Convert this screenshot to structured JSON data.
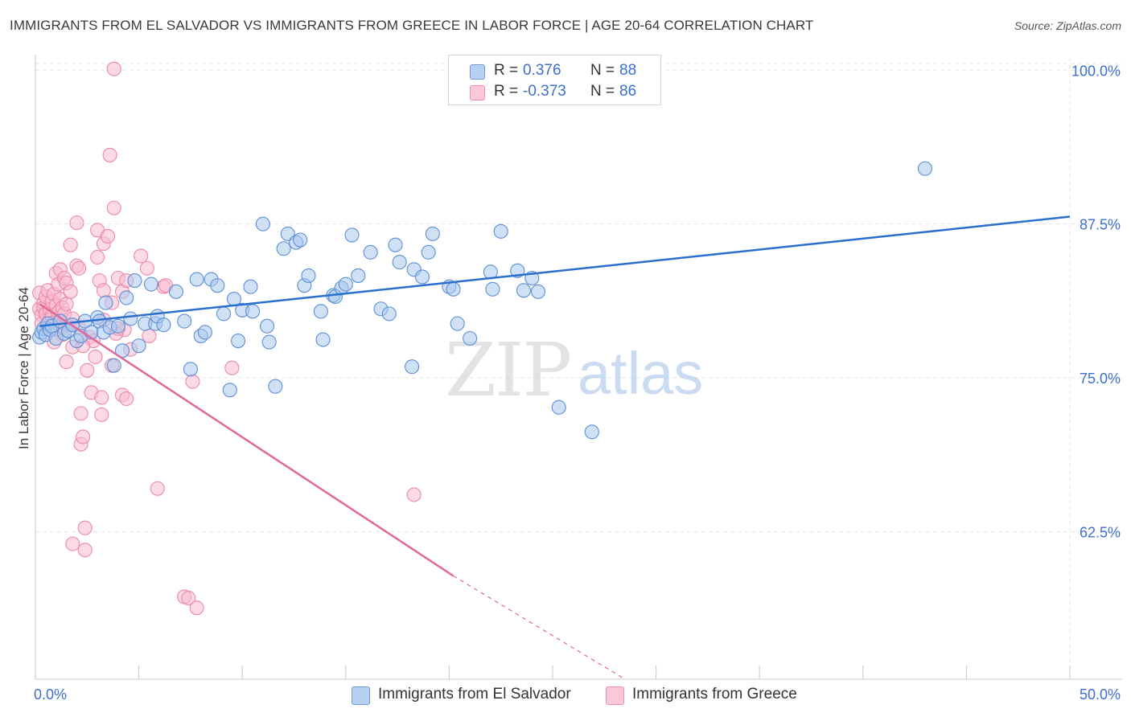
{
  "title": "IMMIGRANTS FROM EL SALVADOR VS IMMIGRANTS FROM GREECE IN LABOR FORCE | AGE 20-64 CORRELATION CHART",
  "source": "Source: ZipAtlas.com",
  "watermark": {
    "zip": "ZIP",
    "atlas": "atlas"
  },
  "legend_top": {
    "rows": [
      {
        "r_label": "R =",
        "r_value": "0.376",
        "n_label": "N =",
        "n_value": "88",
        "color": "#6b9bd9"
      },
      {
        "r_label": "R =",
        "r_value": "-0.373",
        "n_label": "N =",
        "n_value": "86",
        "color": "#f08fae"
      }
    ]
  },
  "colors": {
    "blue_fill": "#aac8ef",
    "blue_stroke": "#5c8fd6",
    "blue_line": "#2a6fce",
    "pink_fill": "#f7bcd0",
    "pink_stroke": "#ec88a8",
    "pink_line": "#e0689a",
    "axis_label": "#3d6fd1",
    "grid": "#e5e5e5"
  },
  "chart_data": {
    "type": "scatter",
    "title": "IMMIGRANTS FROM EL SALVADOR VS IMMIGRANTS FROM GREECE IN LABOR FORCE | AGE 20-64 CORRELATION CHART",
    "xlabel": "",
    "ylabel": "In Labor Force | Age 20-64",
    "xlim": [
      0,
      50
    ],
    "ylim": [
      50.5,
      101
    ],
    "x_tick_labels": [
      "0.0%",
      "50.0%"
    ],
    "y_ticks": [
      62.5,
      75.0,
      87.5,
      100.0
    ],
    "y_tick_labels": [
      "62.5%",
      "75.0%",
      "87.5%",
      "100.0%"
    ],
    "grid": true,
    "legend_placement": "bottom-center",
    "series": [
      {
        "name": "Immigrants from El Salvador",
        "r": 0.376,
        "n": 88,
        "trend": {
          "x": [
            0.2,
            50
          ],
          "y": [
            79.2,
            88.1
          ]
        },
        "points": [
          [
            0.2,
            78.3
          ],
          [
            0.3,
            78.7
          ],
          [
            0.4,
            79.0
          ],
          [
            0.5,
            78.5
          ],
          [
            0.6,
            79.4
          ],
          [
            0.7,
            78.9
          ],
          [
            0.8,
            79.2
          ],
          [
            1.0,
            78.2
          ],
          [
            1.2,
            79.6
          ],
          [
            1.4,
            78.6
          ],
          [
            1.6,
            78.8
          ],
          [
            1.8,
            79.3
          ],
          [
            2.0,
            78.0
          ],
          [
            2.2,
            78.4
          ],
          [
            2.4,
            79.6
          ],
          [
            2.7,
            78.7
          ],
          [
            3.0,
            79.9
          ],
          [
            3.1,
            79.6
          ],
          [
            3.3,
            78.7
          ],
          [
            3.4,
            81.1
          ],
          [
            3.6,
            79.1
          ],
          [
            3.8,
            76.0
          ],
          [
            4.0,
            79.2
          ],
          [
            4.2,
            77.2
          ],
          [
            4.4,
            81.5
          ],
          [
            4.6,
            79.8
          ],
          [
            4.8,
            82.9
          ],
          [
            5.0,
            77.6
          ],
          [
            5.3,
            79.4
          ],
          [
            5.6,
            82.6
          ],
          [
            5.8,
            79.4
          ],
          [
            5.9,
            80.0
          ],
          [
            6.2,
            79.3
          ],
          [
            6.8,
            82.0
          ],
          [
            7.2,
            79.6
          ],
          [
            7.5,
            75.7
          ],
          [
            7.8,
            83.0
          ],
          [
            8.0,
            78.4
          ],
          [
            8.2,
            78.7
          ],
          [
            8.5,
            83.0
          ],
          [
            8.8,
            82.5
          ],
          [
            9.1,
            80.2
          ],
          [
            9.4,
            74.0
          ],
          [
            9.6,
            81.4
          ],
          [
            9.8,
            78.0
          ],
          [
            10.0,
            80.5
          ],
          [
            10.5,
            80.4
          ],
          [
            10.4,
            82.4
          ],
          [
            11.0,
            87.5
          ],
          [
            11.2,
            79.2
          ],
          [
            11.3,
            77.9
          ],
          [
            11.6,
            74.3
          ],
          [
            12.0,
            85.5
          ],
          [
            12.2,
            86.7
          ],
          [
            12.6,
            86.0
          ],
          [
            12.8,
            86.2
          ],
          [
            13.0,
            82.5
          ],
          [
            13.2,
            83.3
          ],
          [
            13.8,
            80.4
          ],
          [
            13.9,
            78.1
          ],
          [
            14.4,
            81.7
          ],
          [
            14.5,
            81.6
          ],
          [
            14.8,
            82.3
          ],
          [
            15.0,
            82.6
          ],
          [
            15.3,
            86.6
          ],
          [
            15.6,
            83.3
          ],
          [
            16.2,
            85.2
          ],
          [
            16.7,
            80.6
          ],
          [
            17.1,
            80.2
          ],
          [
            17.4,
            85.8
          ],
          [
            17.6,
            84.4
          ],
          [
            18.2,
            75.9
          ],
          [
            18.3,
            83.8
          ],
          [
            18.7,
            83.2
          ],
          [
            19.0,
            85.2
          ],
          [
            19.2,
            86.7
          ],
          [
            20.0,
            82.4
          ],
          [
            20.2,
            82.2
          ],
          [
            20.4,
            79.4
          ],
          [
            21.0,
            78.2
          ],
          [
            22.0,
            83.6
          ],
          [
            22.1,
            82.2
          ],
          [
            22.5,
            86.9
          ],
          [
            23.3,
            83.7
          ],
          [
            23.6,
            82.1
          ],
          [
            24.0,
            83.1
          ],
          [
            24.3,
            82.0
          ],
          [
            25.3,
            72.6
          ],
          [
            26.9,
            70.6
          ],
          [
            43.0,
            92.0
          ]
        ]
      },
      {
        "name": "Immigrants from Greece",
        "r": -0.373,
        "n": 86,
        "trend": {
          "x": [
            0.2,
            20.2
          ],
          "y": [
            81.0,
            58.9
          ]
        },
        "trend_dashed": {
          "x": [
            20.2,
            28.5
          ],
          "y": [
            58.9,
            50.5
          ]
        },
        "points": [
          [
            0.2,
            80.6
          ],
          [
            0.2,
            81.9
          ],
          [
            0.3,
            80.1
          ],
          [
            0.3,
            79.4
          ],
          [
            0.4,
            81.1
          ],
          [
            0.4,
            80.7
          ],
          [
            0.5,
            80.2
          ],
          [
            0.5,
            81.6
          ],
          [
            0.6,
            79.0
          ],
          [
            0.6,
            82.1
          ],
          [
            0.7,
            80.5
          ],
          [
            0.7,
            79.7
          ],
          [
            0.8,
            81.2
          ],
          [
            0.8,
            80.0
          ],
          [
            0.9,
            81.8
          ],
          [
            0.9,
            79.5
          ],
          [
            1.0,
            83.5
          ],
          [
            1.0,
            80.9
          ],
          [
            1.1,
            80.3
          ],
          [
            1.1,
            82.6
          ],
          [
            1.2,
            83.8
          ],
          [
            1.2,
            81.4
          ],
          [
            1.3,
            80.7
          ],
          [
            1.3,
            79.1
          ],
          [
            1.4,
            83.1
          ],
          [
            1.4,
            80.2
          ],
          [
            1.5,
            82.7
          ],
          [
            1.5,
            81.0
          ],
          [
            1.6,
            79.3
          ],
          [
            1.7,
            85.8
          ],
          [
            1.7,
            82.0
          ],
          [
            1.8,
            79.8
          ],
          [
            1.3,
            78.5
          ],
          [
            1.0,
            78.9
          ],
          [
            0.9,
            77.9
          ],
          [
            1.5,
            76.3
          ],
          [
            2.0,
            84.1
          ],
          [
            2.1,
            79.1
          ],
          [
            2.0,
            87.6
          ],
          [
            1.8,
            77.5
          ],
          [
            2.1,
            83.9
          ],
          [
            2.2,
            69.6
          ],
          [
            2.2,
            72.1
          ],
          [
            2.3,
            70.2
          ],
          [
            2.5,
            75.6
          ],
          [
            2.7,
            73.8
          ],
          [
            2.4,
            62.8
          ],
          [
            2.4,
            61.0
          ],
          [
            2.6,
            78.3
          ],
          [
            2.8,
            78.0
          ],
          [
            2.9,
            76.7
          ],
          [
            3.0,
            84.8
          ],
          [
            3.0,
            87.0
          ],
          [
            3.2,
            72.0
          ],
          [
            3.2,
            73.4
          ],
          [
            3.3,
            85.9
          ],
          [
            3.1,
            82.9
          ],
          [
            2.3,
            77.6
          ],
          [
            1.8,
            61.5
          ],
          [
            3.5,
            86.5
          ],
          [
            3.6,
            93.1
          ],
          [
            3.8,
            88.8
          ],
          [
            3.7,
            76.0
          ],
          [
            3.7,
            81.1
          ],
          [
            4.0,
            83.1
          ],
          [
            4.2,
            73.6
          ],
          [
            4.4,
            73.3
          ],
          [
            4.6,
            77.3
          ],
          [
            4.3,
            78.9
          ],
          [
            4.2,
            82.0
          ],
          [
            3.9,
            78.6
          ],
          [
            3.3,
            79.7
          ],
          [
            5.1,
            84.9
          ],
          [
            5.4,
            83.9
          ],
          [
            5.5,
            78.4
          ],
          [
            3.3,
            82.1
          ],
          [
            4.0,
            79.0
          ],
          [
            3.8,
            100.1
          ],
          [
            4.4,
            82.9
          ],
          [
            5.9,
            66.0
          ],
          [
            6.2,
            82.4
          ],
          [
            6.3,
            82.5
          ],
          [
            7.2,
            57.2
          ],
          [
            7.4,
            57.1
          ],
          [
            7.8,
            56.3
          ],
          [
            7.6,
            74.7
          ],
          [
            9.5,
            75.8
          ],
          [
            18.3,
            65.5
          ]
        ]
      }
    ]
  }
}
